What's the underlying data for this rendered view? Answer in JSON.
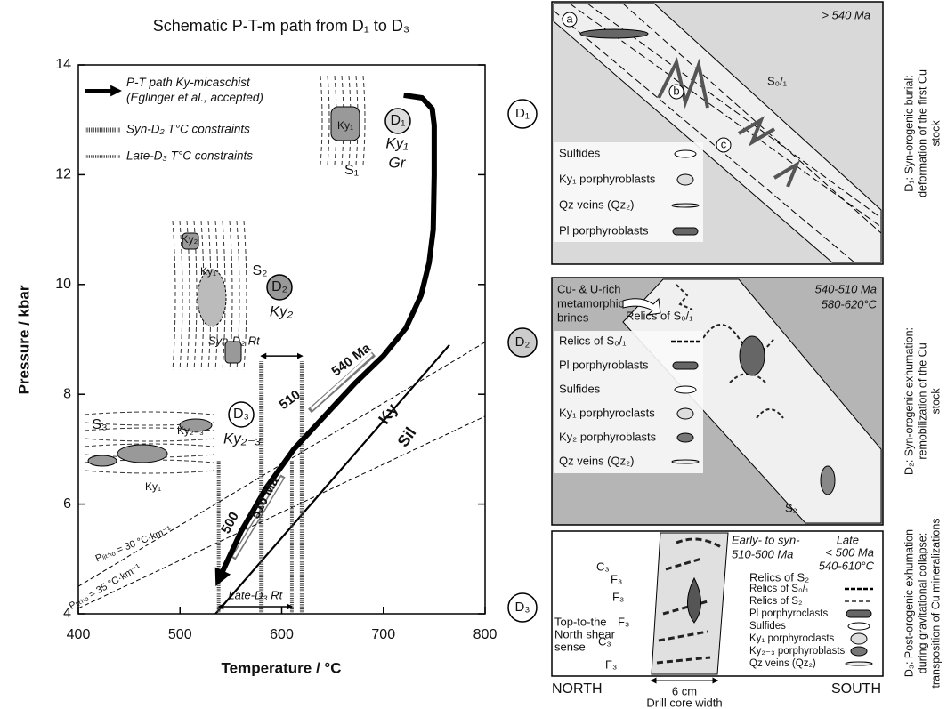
{
  "chart_data": {
    "type": "line",
    "title": "Schematic P-T-m path from D₁ to D₃",
    "x_label": "Temperature / °C",
    "y_label": "Pressure / kbar",
    "xlim": [
      400,
      800
    ],
    "ylim": [
      4,
      14
    ],
    "xticks": [
      400,
      500,
      600,
      700,
      800
    ],
    "yticks": [
      4,
      6,
      8,
      10,
      12,
      14
    ],
    "series": [
      {
        "name": "P-T path Ky-micaschist (Eglinger et al., accepted)",
        "color": "#000000",
        "x": [
          720,
          738,
          748,
          750,
          750,
          749,
          745,
          737,
          722,
          700,
          672,
          642,
          612,
          585,
          560,
          540
        ],
        "values": [
          13.45,
          13.4,
          13.2,
          12.9,
          12.0,
          11.0,
          10.4,
          9.8,
          9.2,
          8.7,
          8.2,
          7.6,
          7.0,
          6.3,
          5.5,
          4.7
        ]
      }
    ],
    "ky_sil": {
      "labels": [
        "Ky",
        "Sil"
      ],
      "x": [
        535,
        765
      ],
      "values": [
        4,
        8.9
      ]
    },
    "geotherms": [
      {
        "label": "Pₗᵢₜₕₒ = 30 °C·km⁻¹",
        "x": [
          400,
          800
        ],
        "values": [
          4.5,
          8.95
        ]
      },
      {
        "label": "Pₗᵢₜₕₒ = 35 °C·km⁻¹",
        "x": [
          400,
          800
        ],
        "values": [
          4.1,
          7.6
        ]
      }
    ],
    "constraints": [
      {
        "name": "Syn-D₂ T°C constraints",
        "label": "Syn-D₂ Rt",
        "x": [
          580,
          620
        ],
        "pmax": 8.6
      },
      {
        "name": "Late-D₃ T°C constraints",
        "label": "Late-D₃ Rt",
        "x": [
          538,
          610
        ],
        "pmax": 6.8
      }
    ],
    "annotations": [
      "D₁",
      "Ky₁",
      "Gr",
      "D₂",
      "Ky₂",
      "D₃",
      "Ky₂₋₃",
      "S₁",
      "Ky₁",
      "S₂",
      "Ky₂",
      "Ky₁",
      "S₃",
      "Ky₂₋₃",
      "Ky₁",
      "540 Ma",
      "510",
      "510 Ma",
      "500"
    ]
  },
  "stages": [
    "D₁",
    "D₂",
    "D₃"
  ],
  "panels": [
    {
      "labels": [
        "> 540 Ma",
        "a",
        "b",
        "c",
        "S₀/₁"
      ],
      "legend": [
        "Sulfides",
        "Ky₁ porphyroblasts",
        "Qz veins (Qz₂)",
        "Pl porphyroblasts"
      ],
      "caption": [
        "D₁: Syn-orogenic burial:",
        "deformation of the first Cu",
        "stock"
      ]
    },
    {
      "labels": [
        "540-510 Ma",
        "580-620°C",
        "Cu- & U-rich",
        "metamorphic",
        "brines",
        "Relics of S₀/₁",
        "S₂"
      ],
      "legend": [
        "Relics of S₀/₁",
        "Pl porphyroblasts",
        "Sulfides",
        "Ky₁ porphyroclasts",
        "Ky₂ porphyroblasts",
        "Qz veins (Qz₂)"
      ],
      "caption": [
        "D₂: Syn-orogenic exhumation:",
        "remobilization of the Cu",
        "stock"
      ]
    },
    {
      "labels": [
        "Early- to syn-",
        "510-500 Ma",
        "Late",
        "< 500 Ma",
        "540-610°C",
        "Relics of S₂",
        "Top-to-the",
        "North shear",
        "sense",
        "C₃",
        "F₃",
        "F₃",
        "F₃",
        "C₃",
        "F₃",
        "NORTH",
        "SOUTH",
        "6 cm",
        "Drill core width"
      ],
      "legend": [
        "Relics of S₀/₁",
        "Relics of S₂",
        "Pl porphyroclasts",
        "Sulfides",
        "Ky₁ porphyroclasts",
        "Ky₂₋₃ porphyroblasts",
        "Qz veins (Qz₂)"
      ],
      "caption": [
        "D₃: Post-orogenic exhumation",
        "during gravitational collapse:",
        "transposition of Cu mineralizations"
      ]
    }
  ]
}
